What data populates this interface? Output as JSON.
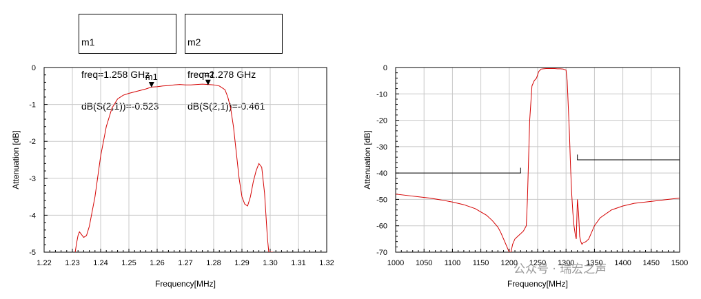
{
  "marker_boxes": [
    {
      "name": "m1",
      "freq_text": "freq=1.258 GHz",
      "db_text": "dB(S(2,1))=-0.523"
    },
    {
      "name": "m2",
      "freq_text": "freq=1.278 GHz",
      "db_text": "dB(S(2,1))=-0.461"
    }
  ],
  "watermark": "公众号 · 瑞宏之声",
  "colors": {
    "trace": "#d40000",
    "grid": "#c8c8c8",
    "axis": "#000000"
  },
  "chart_data": [
    {
      "type": "line",
      "title": "",
      "xlabel": "Frequency[MHz]",
      "ylabel": "Attenuation [dB]",
      "xlim": [
        1.22,
        1.32
      ],
      "ylim": [
        -5,
        0
      ],
      "xticks": [
        "1.22",
        "1.23",
        "1.24",
        "1.25",
        "1.26",
        "1.27",
        "1.28",
        "1.29",
        "1.30",
        "1.31",
        "1.32"
      ],
      "yticks": [
        "0",
        "-1",
        "-2",
        "-3",
        "-4",
        "-5"
      ],
      "grid": true,
      "markers": [
        {
          "label": "m1",
          "x": 1.258,
          "y": -0.523
        },
        {
          "label": "m2",
          "x": 1.278,
          "y": -0.461
        }
      ],
      "series": [
        {
          "values_x": [
            1.231,
            1.2315,
            1.232,
            1.2325,
            1.233,
            1.234,
            1.235,
            1.236,
            1.238,
            1.24,
            1.242,
            1.244,
            1.246,
            1.248,
            1.25,
            1.252,
            1.254,
            1.256,
            1.258,
            1.26,
            1.262,
            1.264,
            1.266,
            1.268,
            1.27,
            1.272,
            1.274,
            1.276,
            1.278,
            1.28,
            1.282,
            1.284,
            1.285,
            1.286,
            1.287,
            1.288,
            1.289,
            1.29,
            1.291,
            1.292,
            1.293,
            1.294,
            1.295,
            1.296,
            1.297,
            1.298,
            1.2985,
            1.299,
            1.2995,
            1.3,
            1.3005,
            1.301
          ],
          "values_y": [
            -5.0,
            -4.75,
            -4.55,
            -4.45,
            -4.5,
            -4.6,
            -4.55,
            -4.3,
            -3.5,
            -2.4,
            -1.6,
            -1.1,
            -0.85,
            -0.75,
            -0.7,
            -0.66,
            -0.62,
            -0.58,
            -0.53,
            -0.52,
            -0.5,
            -0.49,
            -0.47,
            -0.46,
            -0.47,
            -0.47,
            -0.46,
            -0.45,
            -0.46,
            -0.47,
            -0.5,
            -0.6,
            -0.8,
            -1.1,
            -1.6,
            -2.3,
            -3.0,
            -3.5,
            -3.7,
            -3.75,
            -3.5,
            -3.1,
            -2.8,
            -2.6,
            -2.7,
            -3.4,
            -4.0,
            -4.6,
            -5.0,
            -5.0,
            -5.0,
            -5.0
          ]
        }
      ]
    },
    {
      "type": "line",
      "title": "",
      "xlabel": "Frequency[MHz]",
      "ylabel": "Attenuation [dB]",
      "xlim": [
        1000,
        1500
      ],
      "ylim": [
        -70,
        0
      ],
      "xticks": [
        "1000",
        "1050",
        "1100",
        "1150",
        "1200",
        "1250",
        "1300",
        "1350",
        "1400",
        "1450",
        "1500"
      ],
      "yticks": [
        "0",
        "-10",
        "-20",
        "-30",
        "-40",
        "-50",
        "-60",
        "-70"
      ],
      "grid": true,
      "mask_lines": [
        {
          "x": [
            1000,
            1220
          ],
          "y": [
            -40,
            -40
          ],
          "end_tick_to": -38
        },
        {
          "x": [
            1320,
            1500
          ],
          "y": [
            -35,
            -35
          ],
          "start_tick_to": -33
        }
      ],
      "series": [
        {
          "values_x": [
            1000,
            1020,
            1040,
            1060,
            1080,
            1100,
            1120,
            1140,
            1160,
            1170,
            1180,
            1185,
            1190,
            1195,
            1200,
            1203,
            1206,
            1210,
            1215,
            1220,
            1225,
            1230,
            1232,
            1236,
            1240,
            1244,
            1248,
            1252,
            1256,
            1260,
            1265,
            1270,
            1275,
            1280,
            1285,
            1290,
            1295,
            1300,
            1302,
            1304,
            1306,
            1308,
            1310,
            1312,
            1314,
            1316,
            1318,
            1320,
            1322,
            1324,
            1326,
            1328,
            1330,
            1335,
            1340,
            1350,
            1360,
            1380,
            1400,
            1420,
            1440,
            1460,
            1480,
            1500
          ],
          "values_y": [
            -48,
            -48.5,
            -49,
            -49.5,
            -50.2,
            -51,
            -52,
            -53.5,
            -56,
            -58,
            -60.5,
            -62.5,
            -65,
            -67.5,
            -70,
            -70,
            -67,
            -65,
            -64,
            -63,
            -62,
            -60,
            -50,
            -20,
            -7,
            -5,
            -4,
            -1.5,
            -0.6,
            -0.5,
            -0.4,
            -0.4,
            -0.4,
            -0.4,
            -0.5,
            -0.5,
            -0.6,
            -1,
            -5,
            -15,
            -25,
            -38,
            -48,
            -55,
            -60,
            -63,
            -65,
            -50,
            -55,
            -64,
            -66,
            -67,
            -66.5,
            -66,
            -65,
            -60,
            -57,
            -54,
            -52.5,
            -51.5,
            -51,
            -50.5,
            -50,
            -49.5
          ]
        }
      ]
    }
  ]
}
